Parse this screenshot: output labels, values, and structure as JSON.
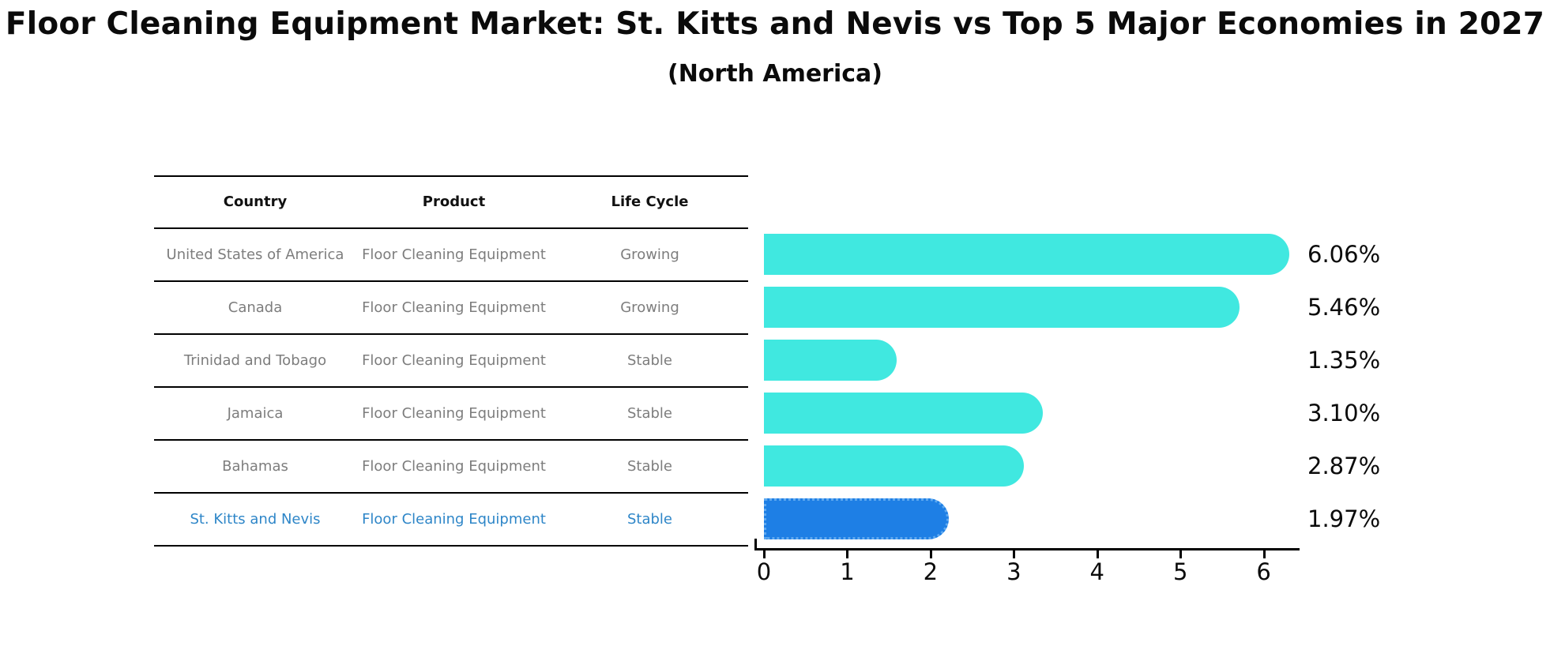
{
  "title": "Floor Cleaning Equipment Market: St. Kitts and Nevis vs Top 5 Major Economies in 2027",
  "subtitle": "(North America)",
  "table": {
    "headers": [
      "Country",
      "Product",
      "Life Cycle"
    ],
    "rows": [
      {
        "country": "United States of America",
        "product": "Floor Cleaning Equipment",
        "life_cycle": "Growing",
        "highlight": false
      },
      {
        "country": "Canada",
        "product": "Floor Cleaning Equipment",
        "life_cycle": "Growing",
        "highlight": false
      },
      {
        "country": "Trinidad and Tobago",
        "product": "Floor Cleaning Equipment",
        "life_cycle": "Stable",
        "highlight": false
      },
      {
        "country": "Jamaica",
        "product": "Floor Cleaning Equipment",
        "life_cycle": "Stable",
        "highlight": false
      },
      {
        "country": "Bahamas",
        "product": "Floor Cleaning Equipment",
        "life_cycle": "Stable",
        "highlight": false
      },
      {
        "country": "St. Kitts and Nevis",
        "product": "Floor Cleaning Equipment",
        "life_cycle": "Stable",
        "highlight": true
      }
    ]
  },
  "chart_data": {
    "type": "bar",
    "orientation": "horizontal",
    "title": "Floor Cleaning Equipment Market: St. Kitts and Nevis vs Top 5 Major Economies in 2027",
    "subtitle": "(North America)",
    "categories": [
      "United States of America",
      "Canada",
      "Trinidad and Tobago",
      "Jamaica",
      "Bahamas",
      "St. Kitts and Nevis"
    ],
    "values": [
      6.06,
      5.46,
      1.35,
      3.1,
      2.87,
      1.97
    ],
    "value_labels": [
      "6.06%",
      "5.46%",
      "1.35%",
      "3.10%",
      "2.87%",
      "1.97%"
    ],
    "xlabel": "",
    "ylabel": "",
    "xlim": [
      0,
      6.43
    ],
    "xticks": [
      0,
      1,
      2,
      3,
      4,
      5,
      6
    ],
    "grid": false,
    "legend": false,
    "highlight_index": 5,
    "colors": {
      "bar": "#40E8E0",
      "highlight_bar": "#1E7FE5",
      "highlight_border": "#5FA9F0",
      "highlight_text": "#2E86C8",
      "row_text": "#7d7d7d",
      "header_text": "#111111",
      "axis": "#000000"
    }
  }
}
